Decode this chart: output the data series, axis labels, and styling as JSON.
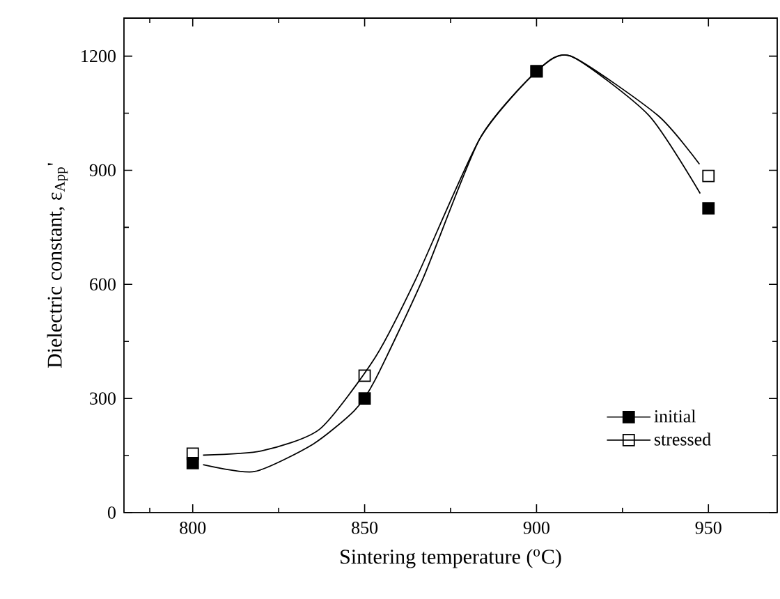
{
  "chart_data": {
    "type": "scatter",
    "xlabel": "Sintering temperature ($^{o}$C)",
    "ylabel": "Dielectric constant, ε$_{App}$'",
    "x": [
      800,
      850,
      900,
      950
    ],
    "series": [
      {
        "name": "initial",
        "color": "#000000",
        "values": [
          130,
          300,
          1160,
          800
        ]
      },
      {
        "name": "stressed",
        "color": "#000000",
        "values": [
          155,
          360,
          1160,
          885
        ]
      },
      {
        "type": "line",
        "marker": "none",
        "color": "#000000",
        "x": [
          803,
          818,
          835,
          847,
          853,
          867,
          883.5,
          900,
          910,
          932.7,
          947.6
        ],
        "values": [
          126,
          108,
          180,
          268,
          348,
          616,
          983,
          1160,
          1200,
          1044,
          839
        ]
      },
      {
        "type": "line",
        "marker": "none",
        "color": "#000000",
        "x": [
          803,
          820,
          837,
          853,
          865,
          883.5,
          900,
          910,
          935.3,
          947.4
        ],
        "values": [
          151,
          162,
          220,
          407,
          616,
          983,
          1160,
          1200,
          1044,
          916
        ]
      }
    ],
    "xlim": [
      780,
      970
    ],
    "ylim": [
      0,
      1300
    ],
    "xticks": [
      {
        "value": 787.5,
        "label": null
      },
      800,
      {
        "value": 825,
        "label": null
      },
      850,
      {
        "value": 875,
        "label": null
      },
      900,
      {
        "value": 925,
        "label": null
      },
      950
    ],
    "yticks": [
      0,
      {
        "value": 150,
        "label": null
      },
      300,
      {
        "value": 450,
        "label": null
      },
      600,
      {
        "value": 750,
        "label": null
      },
      900,
      {
        "value": 1050,
        "label": null
      },
      1200
    ],
    "marker": "square",
    "legend": "bottom right",
    "grid": false
  }
}
